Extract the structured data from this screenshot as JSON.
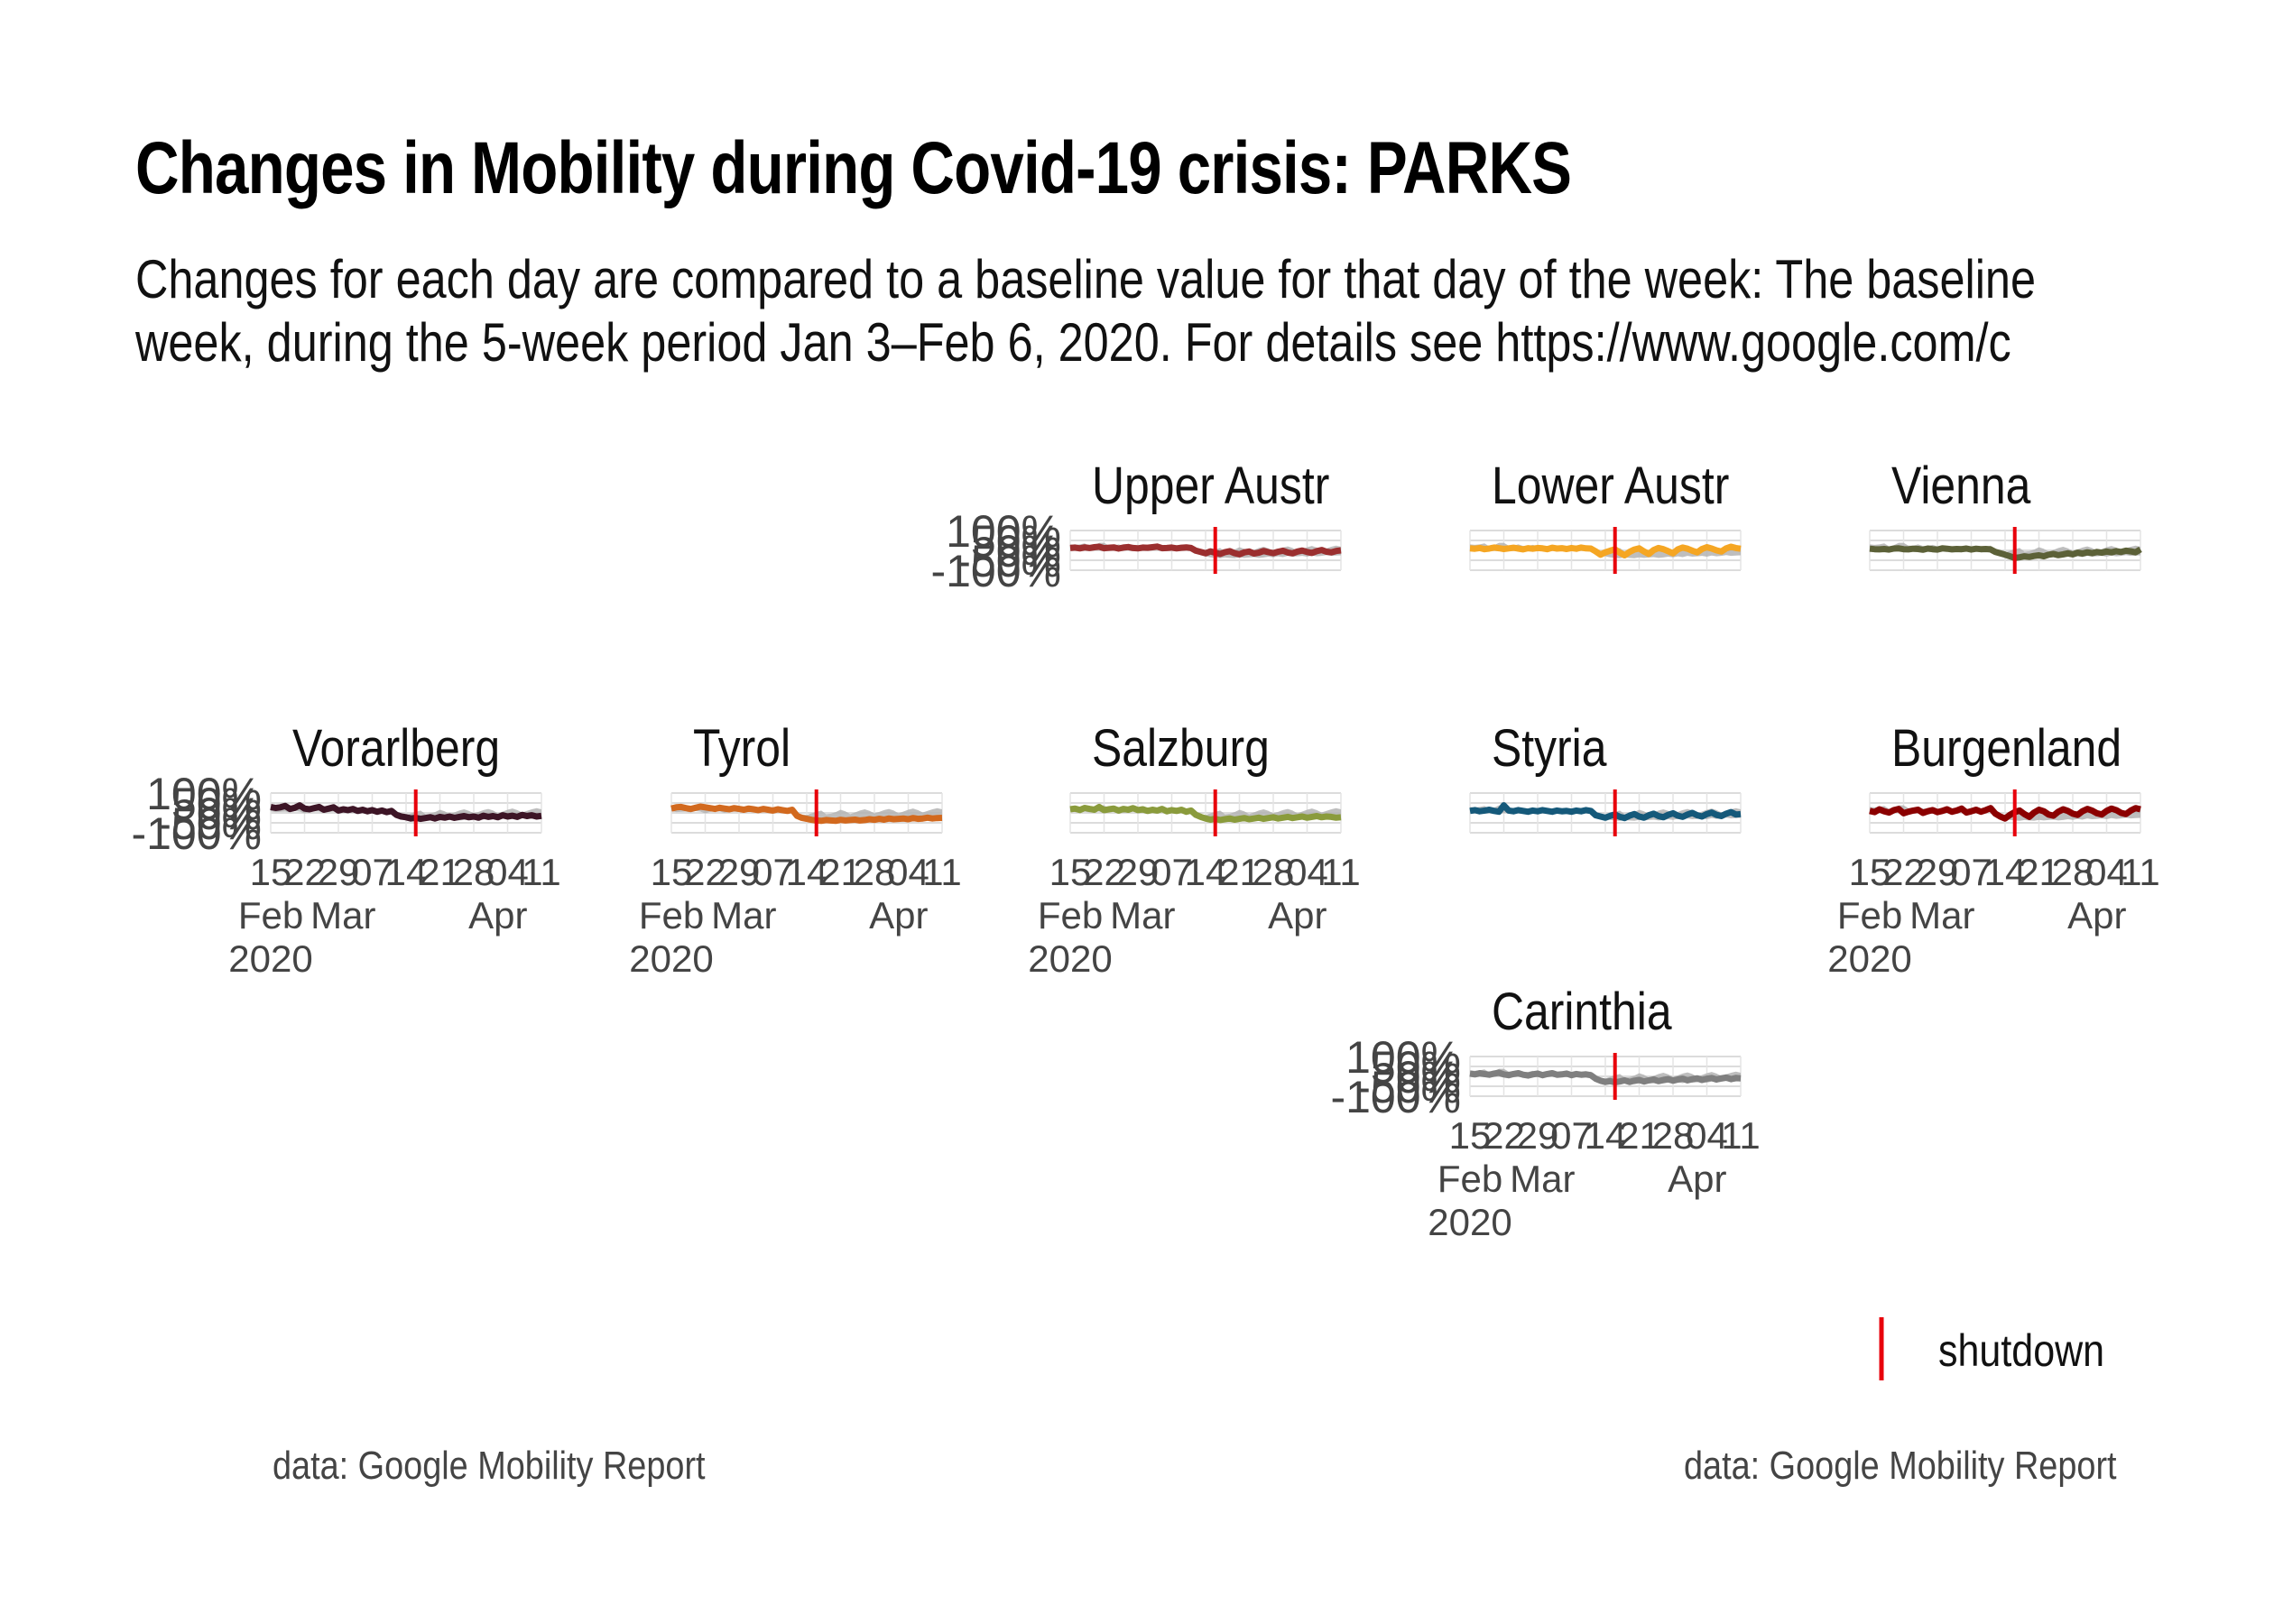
{
  "header": {
    "title": "Changes in Mobility during Covid-19 crisis: PARKS",
    "subtitle_line1": "Changes for each day are compared to a baseline value for that day of the week: The baseline",
    "subtitle_line2": "week, during the 5-week period Jan 3–Feb 6, 2020. For details see https://www.google.com/c"
  },
  "captions": {
    "left": "data: Google Mobility Report",
    "right": "data: Google Mobility Report"
  },
  "legend": {
    "label": "shutdown",
    "color": "#e8000b"
  },
  "chart_data": {
    "type": "line",
    "title": "Changes in Mobility during Covid-19 crisis: PARKS",
    "x_range": [
      "2020-02-15",
      "2020-04-11"
    ],
    "y_ticks": [
      "100%",
      "50%",
      "0%",
      "-50%",
      "-100%"
    ],
    "ylim": [
      -100,
      100
    ],
    "x_ticks": [
      "15",
      "22",
      "29",
      "07",
      "14",
      "21",
      "28",
      "04",
      "11"
    ],
    "x_month_labels": [
      "Feb",
      "Mar",
      "Apr"
    ],
    "x_year_label": "2020",
    "shutdown_date": "2020-03-16",
    "background_series_color": "#b3b3b3",
    "panels": [
      {
        "name": "Upper Austr",
        "color": "#9b2f2f",
        "show_y": true,
        "show_x": false,
        "values": [
          12,
          14,
          10,
          15,
          12,
          16,
          18,
          11,
          13,
          15,
          9,
          14,
          17,
          12,
          10,
          14,
          13,
          16,
          19,
          11,
          12,
          14,
          10,
          13,
          15,
          12,
          -2,
          -8,
          -15,
          -5,
          -12,
          -18,
          -9,
          -4,
          -14,
          -20,
          -10,
          -6,
          -16,
          -12,
          -3,
          -9,
          -14,
          -7,
          -2,
          -11,
          -15,
          -6,
          -1,
          -8,
          -13,
          -4,
          2,
          -7,
          -10,
          -3,
          0
        ]
      },
      {
        "name": "Lower Austr",
        "color": "#f5a623",
        "show_y": false,
        "show_x": false,
        "values": [
          10,
          8,
          12,
          6,
          9,
          14,
          11,
          7,
          10,
          13,
          9,
          5,
          11,
          8,
          12,
          10,
          6,
          13,
          9,
          11,
          7,
          12,
          8,
          14,
          10,
          9,
          -5,
          -22,
          -10,
          -2,
          5,
          -12,
          -25,
          -8,
          4,
          10,
          -6,
          -18,
          2,
          12,
          6,
          -4,
          -15,
          5,
          14,
          8,
          -2,
          -10,
          7,
          16,
          9,
          0,
          -6,
          10,
          18,
          12,
          8
        ]
      },
      {
        "name": "Vienna",
        "color": "#5c6138",
        "show_y": false,
        "show_x": false,
        "values": [
          8,
          6,
          5,
          7,
          4,
          9,
          10,
          6,
          5,
          8,
          7,
          3,
          9,
          6,
          4,
          10,
          8,
          5,
          7,
          6,
          9,
          4,
          8,
          6,
          7,
          5,
          -8,
          -15,
          -22,
          -30,
          -38,
          -35,
          -30,
          -33,
          -28,
          -25,
          -30,
          -22,
          -18,
          -24,
          -20,
          -15,
          -20,
          -12,
          -16,
          -10,
          -14,
          -8,
          -12,
          -6,
          -10,
          -4,
          -8,
          -2,
          -5,
          -10,
          5
        ]
      },
      {
        "name": "Vorarlberg",
        "color": "#3d1526",
        "show_y": true,
        "show_x": true,
        "values": [
          30,
          25,
          28,
          35,
          20,
          26,
          38,
          22,
          18,
          24,
          30,
          16,
          22,
          28,
          12,
          18,
          14,
          20,
          10,
          16,
          8,
          14,
          6,
          12,
          4,
          10,
          -10,
          -18,
          -22,
          -28,
          -25,
          -30,
          -26,
          -22,
          -28,
          -20,
          -24,
          -18,
          -25,
          -20,
          -16,
          -22,
          -18,
          -24,
          -14,
          -20,
          -16,
          -22,
          -12,
          -18,
          -14,
          -20,
          -10,
          -16,
          -12,
          -18,
          -15
        ]
      },
      {
        "name": "Tyrol",
        "color": "#d2691e",
        "show_y": false,
        "show_x": true,
        "values": [
          22,
          28,
          30,
          24,
          20,
          26,
          32,
          28,
          24,
          20,
          26,
          22,
          18,
          24,
          20,
          16,
          22,
          18,
          14,
          20,
          16,
          12,
          18,
          14,
          10,
          16,
          -15,
          -25,
          -30,
          -35,
          -38,
          -40,
          -36,
          -38,
          -40,
          -35,
          -38,
          -36,
          -34,
          -38,
          -36,
          -32,
          -35,
          -30,
          -34,
          -28,
          -32,
          -30,
          -28,
          -32,
          -26,
          -30,
          -28,
          -24,
          -28,
          -26,
          -25
        ]
      },
      {
        "name": "Salzburg",
        "color": "#8a9b3c",
        "show_y": false,
        "show_x": true,
        "values": [
          18,
          22,
          15,
          25,
          20,
          16,
          30,
          14,
          18,
          22,
          12,
          20,
          16,
          24,
          14,
          18,
          10,
          16,
          12,
          20,
          8,
          14,
          10,
          16,
          6,
          12,
          -10,
          -20,
          -28,
          -34,
          -30,
          -36,
          -32,
          -28,
          -34,
          -30,
          -26,
          -32,
          -28,
          -24,
          -30,
          -26,
          -22,
          -28,
          -24,
          -20,
          -26,
          -22,
          -18,
          -24,
          -20,
          -16,
          -22,
          -18,
          -20,
          -24,
          -22
        ]
      },
      {
        "name": "Styria",
        "color": "#15597a",
        "show_y": false,
        "show_x": false,
        "values": [
          10,
          14,
          8,
          12,
          16,
          10,
          6,
          38,
          12,
          8,
          14,
          10,
          6,
          12,
          8,
          14,
          10,
          6,
          12,
          8,
          10,
          6,
          12,
          8,
          14,
          10,
          -12,
          -18,
          -24,
          -15,
          -8,
          -20,
          -26,
          -14,
          -6,
          -18,
          -24,
          -12,
          -4,
          -16,
          -22,
          -10,
          -2,
          -14,
          -20,
          -8,
          0,
          -12,
          -18,
          -6,
          2,
          -10,
          -16,
          -4,
          4,
          -8,
          -6
        ]
      },
      {
        "name": "Burgenland",
        "color": "#8b0000",
        "show_y": false,
        "show_x": true,
        "values": [
          10,
          4,
          18,
          8,
          2,
          14,
          20,
          -2,
          6,
          12,
          16,
          0,
          8,
          14,
          4,
          10,
          18,
          6,
          12,
          22,
          2,
          8,
          16,
          6,
          14,
          24,
          -4,
          -18,
          -28,
          -10,
          4,
          12,
          -6,
          -20,
          2,
          16,
          8,
          -8,
          -14,
          6,
          18,
          10,
          -4,
          -10,
          8,
          20,
          12,
          -2,
          -8,
          10,
          22,
          14,
          0,
          -6,
          12,
          24,
          18
        ]
      },
      {
        "name": "Carinthia",
        "color": "#7f7f7f",
        "show_y": true,
        "show_x": true,
        "values": [
          14,
          10,
          16,
          12,
          8,
          14,
          18,
          10,
          6,
          12,
          16,
          8,
          4,
          10,
          14,
          6,
          12,
          16,
          8,
          10,
          14,
          6,
          12,
          8,
          10,
          6,
          -12,
          -22,
          -28,
          -24,
          -30,
          -26,
          -20,
          -28,
          -22,
          -18,
          -26,
          -20,
          -16,
          -24,
          -18,
          -14,
          -22,
          -16,
          -12,
          -20,
          -14,
          -10,
          -18,
          -12,
          -8,
          -16,
          -10,
          -6,
          -14,
          -8,
          -10
        ]
      }
    ]
  }
}
